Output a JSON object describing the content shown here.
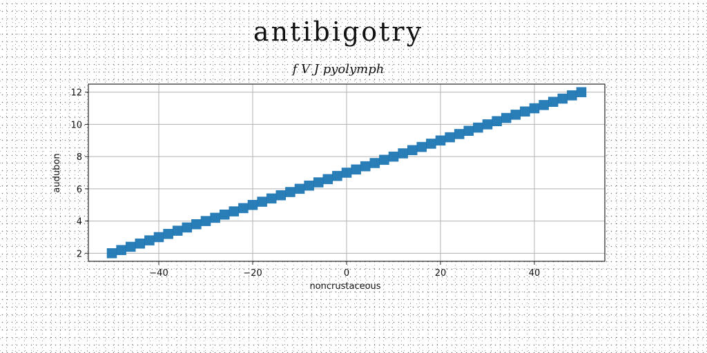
{
  "chart_data": {
    "type": "scatter",
    "title": "antibigotry",
    "subtitle": "f V J pyolymph",
    "xlabel": "noncrustaceous",
    "ylabel": "audubon",
    "xlim": [
      -55,
      55
    ],
    "ylim": [
      1.5,
      12.5
    ],
    "xticks": [
      -40,
      -20,
      0,
      20,
      40
    ],
    "xtick_labels": [
      "−40",
      "−20",
      "0",
      "20",
      "40"
    ],
    "yticks": [
      2,
      4,
      6,
      8,
      10,
      12
    ],
    "ytick_labels": [
      "2",
      "4",
      "6",
      "8",
      "10",
      "12"
    ],
    "grid": true,
    "marker": "square",
    "color": "#1f77b4",
    "series": [
      {
        "x": [
          -50,
          -48,
          -46,
          -44,
          -42,
          -40,
          -38,
          -36,
          -34,
          -32,
          -30,
          -28,
          -26,
          -24,
          -22,
          -20,
          -18,
          -16,
          -14,
          -12,
          -10,
          -8,
          -6,
          -4,
          -2,
          0,
          2,
          4,
          6,
          8,
          10,
          12,
          14,
          16,
          18,
          20,
          22,
          24,
          26,
          28,
          30,
          32,
          34,
          36,
          38,
          40,
          42,
          44,
          46,
          48,
          50
        ],
        "y": [
          2.0,
          2.2,
          2.4,
          2.6,
          2.8,
          3.0,
          3.2,
          3.4,
          3.6,
          3.8,
          4.0,
          4.2,
          4.4,
          4.6,
          4.8,
          5.0,
          5.2,
          5.4,
          5.6,
          5.8,
          6.0,
          6.2,
          6.4,
          6.6,
          6.8,
          7.0,
          7.2,
          7.4,
          7.6,
          7.8,
          8.0,
          8.2,
          8.4,
          8.6,
          8.8,
          9.0,
          9.2,
          9.4,
          9.6,
          9.8,
          10.0,
          10.2,
          10.4,
          10.6,
          10.8,
          11.0,
          11.2,
          11.4,
          11.6,
          11.8,
          12.0
        ]
      }
    ]
  }
}
